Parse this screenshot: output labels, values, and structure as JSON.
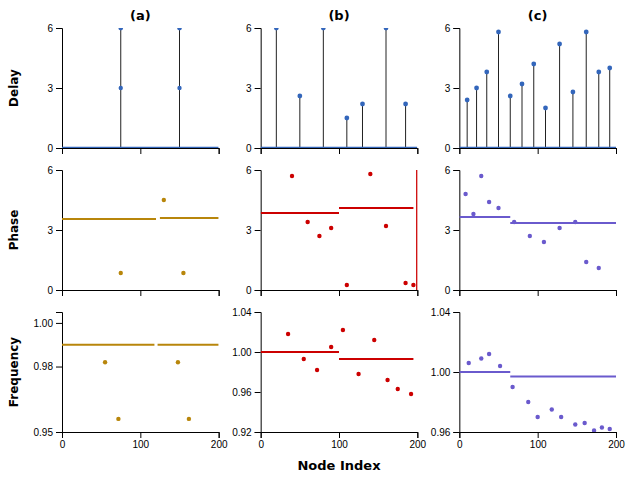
{
  "chart_data": [
    {
      "type": "stem",
      "title": "(a)",
      "ylabel": "Delay",
      "xlim": [
        0,
        200
      ],
      "xticks": [
        0,
        100,
        200
      ],
      "ylim": [
        0,
        6
      ],
      "yticks": [
        0,
        3,
        6
      ],
      "tick_labels": "y",
      "series": [
        {
          "type": "hline",
          "color": "#3366bb",
          "values": [
            0
          ]
        },
        {
          "type": "stem",
          "color": "#3366bb",
          "x": [
            75,
            150
          ],
          "values": [
            6.0,
            6.0
          ]
        },
        {
          "type": "scatter",
          "color": "#3366bb",
          "x": [
            75,
            150
          ],
          "values": [
            3.0,
            3.0
          ]
        }
      ]
    },
    {
      "type": "stem",
      "title": "(b)",
      "xlim": [
        0,
        200
      ],
      "xticks": [
        0,
        100,
        200
      ],
      "ylim": [
        0,
        6
      ],
      "yticks": [
        0,
        3,
        6
      ],
      "tick_labels": "y",
      "series": [
        {
          "type": "hline",
          "color": "#3366bb",
          "values": [
            0
          ]
        },
        {
          "type": "stem",
          "color": "#3366bb",
          "x": [
            20,
            50,
            80,
            110,
            130,
            160,
            185
          ],
          "values": [
            6.0,
            2.6,
            6.0,
            1.5,
            2.2,
            6.0,
            2.2
          ]
        }
      ]
    },
    {
      "type": "stem",
      "title": "(c)",
      "xlim": [
        0,
        200
      ],
      "xticks": [
        0,
        100,
        200
      ],
      "ylim": [
        0,
        6
      ],
      "yticks": [
        0,
        3,
        6
      ],
      "tick_labels": "y",
      "series": [
        {
          "type": "hline",
          "color": "#3366bb",
          "values": [
            0
          ]
        },
        {
          "type": "stem",
          "color": "#3366bb",
          "x": [
            10,
            22,
            35,
            50,
            65,
            80,
            95,
            110,
            128,
            145,
            162,
            178,
            192
          ],
          "values": [
            2.4,
            3.0,
            3.8,
            5.8,
            2.6,
            3.2,
            4.2,
            2.0,
            5.2,
            2.8,
            5.8,
            3.8,
            4.0
          ]
        }
      ]
    },
    {
      "type": "line",
      "ylabel": "Phase",
      "xlim": [
        0,
        200
      ],
      "xticks": [
        0,
        100,
        200
      ],
      "ylim": [
        0,
        6
      ],
      "yticks": [
        0,
        3,
        6
      ],
      "tick_labels": "y",
      "series": [
        {
          "type": "line",
          "color": "#b8860b",
          "x": [
            0,
            120
          ],
          "values": [
            3.55,
            3.55
          ]
        },
        {
          "type": "line",
          "color": "#b8860b",
          "x": [
            125,
            200
          ],
          "values": [
            3.6,
            3.6
          ]
        },
        {
          "type": "scatter",
          "color": "#b8860b",
          "x": [
            75,
            155
          ],
          "values": [
            0.85,
            0.85
          ]
        },
        {
          "type": "scatter",
          "color": "#b8860b",
          "x": [
            130
          ],
          "values": [
            4.5
          ]
        }
      ]
    },
    {
      "type": "line",
      "xlim": [
        0,
        200
      ],
      "xticks": [
        0,
        100,
        200
      ],
      "ylim": [
        0,
        6
      ],
      "yticks": [
        0,
        3,
        6
      ],
      "tick_labels": "y",
      "series": [
        {
          "type": "line",
          "color": "#cc0000",
          "x": [
            0,
            100
          ],
          "values": [
            3.85,
            3.85
          ]
        },
        {
          "type": "line",
          "color": "#cc0000",
          "x": [
            100,
            195
          ],
          "values": [
            4.1,
            4.1
          ]
        },
        {
          "type": "scatter",
          "color": "#cc0000",
          "x": [
            40,
            60,
            75,
            90,
            110,
            140,
            160,
            185,
            195
          ],
          "values": [
            5.7,
            3.4,
            2.7,
            3.1,
            0.25,
            5.8,
            3.2,
            0.35,
            0.25
          ]
        },
        {
          "type": "vline",
          "color": "#cc0000",
          "x": [
            200
          ]
        }
      ]
    },
    {
      "type": "line",
      "xlim": [
        0,
        200
      ],
      "xticks": [
        0,
        100,
        200
      ],
      "ylim": [
        0,
        6
      ],
      "yticks": [
        0,
        3,
        6
      ],
      "tick_labels": "y",
      "series": [
        {
          "type": "line",
          "color": "#6a5acd",
          "x": [
            0,
            65
          ],
          "values": [
            3.65,
            3.65
          ]
        },
        {
          "type": "line",
          "color": "#6a5acd",
          "x": [
            65,
            200
          ],
          "values": [
            3.35,
            3.35
          ]
        },
        {
          "type": "scatter",
          "color": "#6a5acd",
          "x": [
            8,
            18,
            28,
            38,
            50,
            70,
            90,
            108,
            128,
            148,
            162,
            178
          ],
          "values": [
            4.8,
            3.8,
            5.7,
            4.4,
            4.1,
            3.4,
            2.7,
            2.4,
            3.1,
            3.4,
            1.4,
            1.1
          ]
        }
      ]
    },
    {
      "type": "line",
      "ylabel": "Frequency",
      "xlim": [
        0,
        200
      ],
      "xticks": [
        0,
        100,
        200
      ],
      "ylim": [
        0.95,
        1.005
      ],
      "yticks": [
        0.95,
        0.98,
        {
          "value": 1.0,
          "label": "1.00"
        }
      ],
      "series": [
        {
          "type": "line",
          "color": "#b8860b",
          "x": [
            0,
            118
          ],
          "values": [
            0.99,
            0.99
          ]
        },
        {
          "type": "line",
          "color": "#b8860b",
          "x": [
            122,
            200
          ],
          "values": [
            0.99,
            0.99
          ]
        },
        {
          "type": "scatter",
          "color": "#b8860b",
          "x": [
            55,
            148
          ],
          "values": [
            0.982,
            0.982
          ]
        },
        {
          "type": "scatter",
          "color": "#b8860b",
          "x": [
            72,
            162
          ],
          "values": [
            0.956,
            0.956
          ]
        }
      ]
    },
    {
      "type": "line",
      "xlabel": "Node Index",
      "xlim": [
        0,
        200
      ],
      "xticks": [
        0,
        100,
        200
      ],
      "ylim": [
        0.92,
        1.04
      ],
      "yticks": [
        0.92,
        0.96,
        {
          "value": 1.0,
          "label": "1.00"
        },
        1.04
      ],
      "series": [
        {
          "type": "line",
          "color": "#cc0000",
          "x": [
            0,
            100
          ],
          "values": [
            1.0,
            1.0
          ]
        },
        {
          "type": "line",
          "color": "#cc0000",
          "x": [
            100,
            195
          ],
          "values": [
            0.993,
            0.993
          ]
        },
        {
          "type": "scatter",
          "color": "#cc0000",
          "x": [
            35,
            55,
            72,
            90,
            105,
            125,
            145,
            162,
            175,
            192
          ],
          "values": [
            1.018,
            0.993,
            0.982,
            1.005,
            1.022,
            0.978,
            1.012,
            0.972,
            0.963,
            0.958
          ]
        }
      ]
    },
    {
      "type": "line",
      "xlim": [
        0,
        200
      ],
      "xticks": [
        0,
        100,
        200
      ],
      "ylim": [
        0.96,
        1.04
      ],
      "yticks": [
        0.96,
        {
          "value": 1.0,
          "label": "1.00"
        },
        1.04
      ],
      "series": [
        {
          "type": "line",
          "color": "#6a5acd",
          "x": [
            0,
            65
          ],
          "values": [
            1.0,
            1.0
          ]
        },
        {
          "type": "line",
          "color": "#6a5acd",
          "x": [
            65,
            200
          ],
          "values": [
            0.997,
            0.997
          ]
        },
        {
          "type": "scatter",
          "color": "#6a5acd",
          "x": [
            12,
            28,
            38,
            52,
            68,
            88,
            100,
            118,
            130,
            148,
            160,
            172,
            182,
            192
          ],
          "values": [
            1.006,
            1.009,
            1.012,
            1.004,
            0.99,
            0.98,
            0.97,
            0.975,
            0.97,
            0.965,
            0.966,
            0.961,
            0.963,
            0.962
          ]
        }
      ]
    }
  ]
}
